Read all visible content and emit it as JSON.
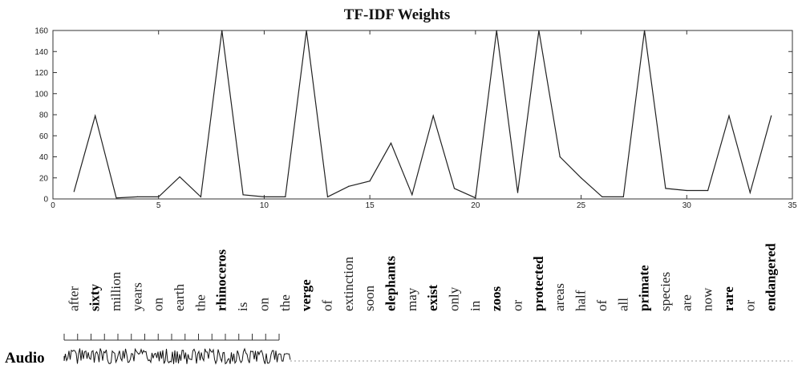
{
  "chart_data": {
    "type": "line",
    "title": "TF-IDF Weights",
    "xlabel": "",
    "ylabel": "",
    "xlim": [
      0,
      35
    ],
    "ylim": [
      0,
      160
    ],
    "xticks": [
      "0",
      "5",
      "10",
      "15",
      "20",
      "25",
      "30",
      "35"
    ],
    "yticks": [
      "0",
      "20",
      "40",
      "60",
      "80",
      "100",
      "120",
      "140",
      "160"
    ],
    "grid": false,
    "series": [
      {
        "x": [
          1,
          2,
          3,
          4,
          5,
          6,
          7,
          8,
          9,
          10,
          11,
          12,
          13,
          14,
          15,
          16,
          17,
          18,
          19,
          20,
          21,
          22,
          23,
          24,
          25,
          26,
          27,
          28,
          29,
          30,
          31,
          32,
          33,
          34
        ],
        "values": [
          7,
          79,
          1,
          2,
          2,
          21,
          2,
          160,
          4,
          2,
          2,
          160,
          2,
          12,
          17,
          53,
          4,
          79,
          10,
          1,
          160,
          6,
          160,
          40,
          20,
          2,
          2,
          160,
          10,
          8,
          8,
          79,
          6,
          79
        ]
      }
    ],
    "words": [
      {
        "text": "after",
        "bold": false
      },
      {
        "text": "sixty",
        "bold": true
      },
      {
        "text": "million",
        "bold": false
      },
      {
        "text": "years",
        "bold": false
      },
      {
        "text": "on",
        "bold": false
      },
      {
        "text": "earth",
        "bold": false
      },
      {
        "text": "the",
        "bold": false
      },
      {
        "text": "rhinoceros",
        "bold": true
      },
      {
        "text": "is",
        "bold": false
      },
      {
        "text": "on",
        "bold": false
      },
      {
        "text": "the",
        "bold": false
      },
      {
        "text": "verge",
        "bold": true
      },
      {
        "text": "of",
        "bold": false
      },
      {
        "text": "extinction",
        "bold": false
      },
      {
        "text": "soon",
        "bold": false
      },
      {
        "text": "elephants",
        "bold": true
      },
      {
        "text": "may",
        "bold": false
      },
      {
        "text": "exist",
        "bold": true
      },
      {
        "text": "only",
        "bold": false
      },
      {
        "text": "in",
        "bold": false
      },
      {
        "text": "zoos",
        "bold": true
      },
      {
        "text": "or",
        "bold": false
      },
      {
        "text": "protected",
        "bold": true
      },
      {
        "text": "areas",
        "bold": false
      },
      {
        "text": "half",
        "bold": false
      },
      {
        "text": "of",
        "bold": false
      },
      {
        "text": "all",
        "bold": false
      },
      {
        "text": "primate",
        "bold": true
      },
      {
        "text": "species",
        "bold": false
      },
      {
        "text": "are",
        "bold": false
      },
      {
        "text": "now",
        "bold": false
      },
      {
        "text": "rare",
        "bold": true
      },
      {
        "text": "or",
        "bold": false
      },
      {
        "text": "endangered",
        "bold": true
      }
    ],
    "audio_label": "Audio",
    "colors": {
      "line": "#222222",
      "axis": "#333333",
      "waveform": "#111111",
      "timeline": "#999999"
    }
  }
}
